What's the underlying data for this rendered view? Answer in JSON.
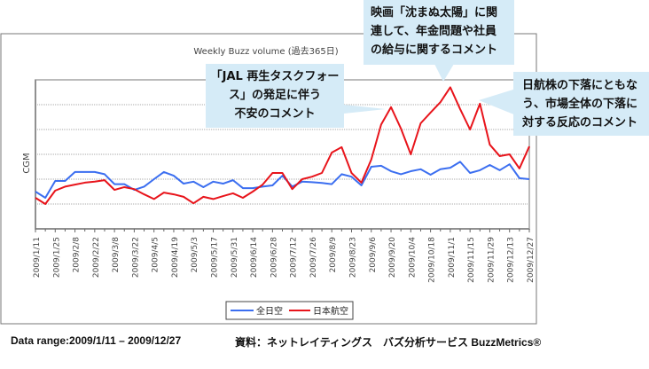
{
  "chart_data": {
    "type": "line",
    "title": "Weekly Buzz volume (過去365日)",
    "xlabel": "",
    "ylabel": "CGM",
    "ylim": [
      0,
      6
    ],
    "grid": true,
    "legend_position": "bottom",
    "x_tick_labels": [
      "2009/1/11",
      "2009/1/25",
      "2009/2/8",
      "2009/2/22",
      "2009/3/8",
      "2009/3/22",
      "2009/4/5",
      "2009/4/19",
      "2009/5/3",
      "2009/5/17",
      "2009/5/31",
      "2009/6/14",
      "2009/6/28",
      "2009/7/12",
      "2009/7/26",
      "2009/8/9",
      "2009/8/23",
      "2009/9/6",
      "2009/9/20",
      "2009/10/4",
      "2009/10/18",
      "2009/11/1",
      "2009/11/15",
      "2009/11/29",
      "2009/12/13",
      "2009/12/27"
    ],
    "series": [
      {
        "name": "全日空",
        "color": "#3b6ef0",
        "values": [
          1.5,
          1.25,
          1.93,
          1.93,
          2.29,
          2.29,
          2.29,
          2.2,
          1.8,
          1.8,
          1.57,
          1.7,
          2.0,
          2.29,
          2.14,
          1.82,
          1.9,
          1.68,
          1.9,
          1.82,
          1.96,
          1.64,
          1.64,
          1.7,
          1.75,
          2.14,
          1.7,
          1.9,
          1.88,
          1.85,
          1.8,
          2.2,
          2.1,
          1.75,
          2.5,
          2.54,
          2.32,
          2.2,
          2.32,
          2.4,
          2.18,
          2.4,
          2.46,
          2.7,
          2.25,
          2.36,
          2.57,
          2.36,
          2.6,
          2.04,
          2.0
        ]
      },
      {
        "name": "日本航空",
        "color": "#e8141b",
        "values": [
          1.25,
          1.0,
          1.54,
          1.7,
          1.78,
          1.86,
          1.9,
          1.96,
          1.57,
          1.68,
          1.6,
          1.39,
          1.2,
          1.46,
          1.39,
          1.29,
          1.03,
          1.29,
          1.2,
          1.32,
          1.43,
          1.25,
          1.5,
          1.78,
          2.25,
          2.25,
          1.6,
          2.0,
          2.1,
          2.25,
          3.07,
          3.29,
          2.25,
          1.86,
          2.79,
          4.2,
          4.9,
          4.04,
          3.0,
          4.25,
          4.68,
          5.1,
          5.7,
          4.82,
          4.0,
          5.04,
          3.39,
          2.93,
          3.0,
          2.43,
          3.32
        ]
      }
    ]
  },
  "annotations": {
    "jal_task_force": [
      "「JAL 再生タスクフォー",
      "ス」の発足に伴う",
      "不安のコメント"
    ],
    "movie": [
      "映画「沈まぬ太陽」に関",
      "連して、年金問題や社員",
      "の給与に関するコメント"
    ],
    "stock": [
      "日航株の下落にともな",
      "う、市場全体の下落に",
      "対する反応のコメント"
    ]
  },
  "footer": {
    "data_range": "Data range:2009/1/11 – 2009/12/27",
    "source": "資料：ネットレイティングス　バズ分析サービス BuzzMetrics®"
  }
}
